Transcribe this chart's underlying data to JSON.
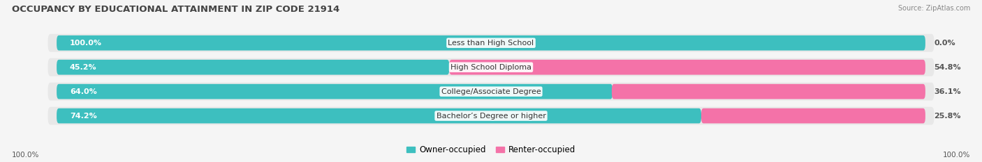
{
  "title": "OCCUPANCY BY EDUCATIONAL ATTAINMENT IN ZIP CODE 21914",
  "source": "Source: ZipAtlas.com",
  "categories": [
    "Less than High School",
    "High School Diploma",
    "College/Associate Degree",
    "Bachelor’s Degree or higher"
  ],
  "owner_pct": [
    100.0,
    45.2,
    64.0,
    74.2
  ],
  "renter_pct": [
    0.0,
    54.8,
    36.1,
    25.8
  ],
  "owner_color": "#3DBFBF",
  "renter_color": "#F472A8",
  "bg_row_color": "#e8e8e8",
  "bg_color": "#f5f5f5",
  "title_fontsize": 9.5,
  "source_fontsize": 7,
  "bar_label_fontsize": 8,
  "cat_label_fontsize": 8,
  "legend_fontsize": 8.5,
  "axis_label_fontsize": 7.5,
  "legend_labels": [
    "Owner-occupied",
    "Renter-occupied"
  ]
}
